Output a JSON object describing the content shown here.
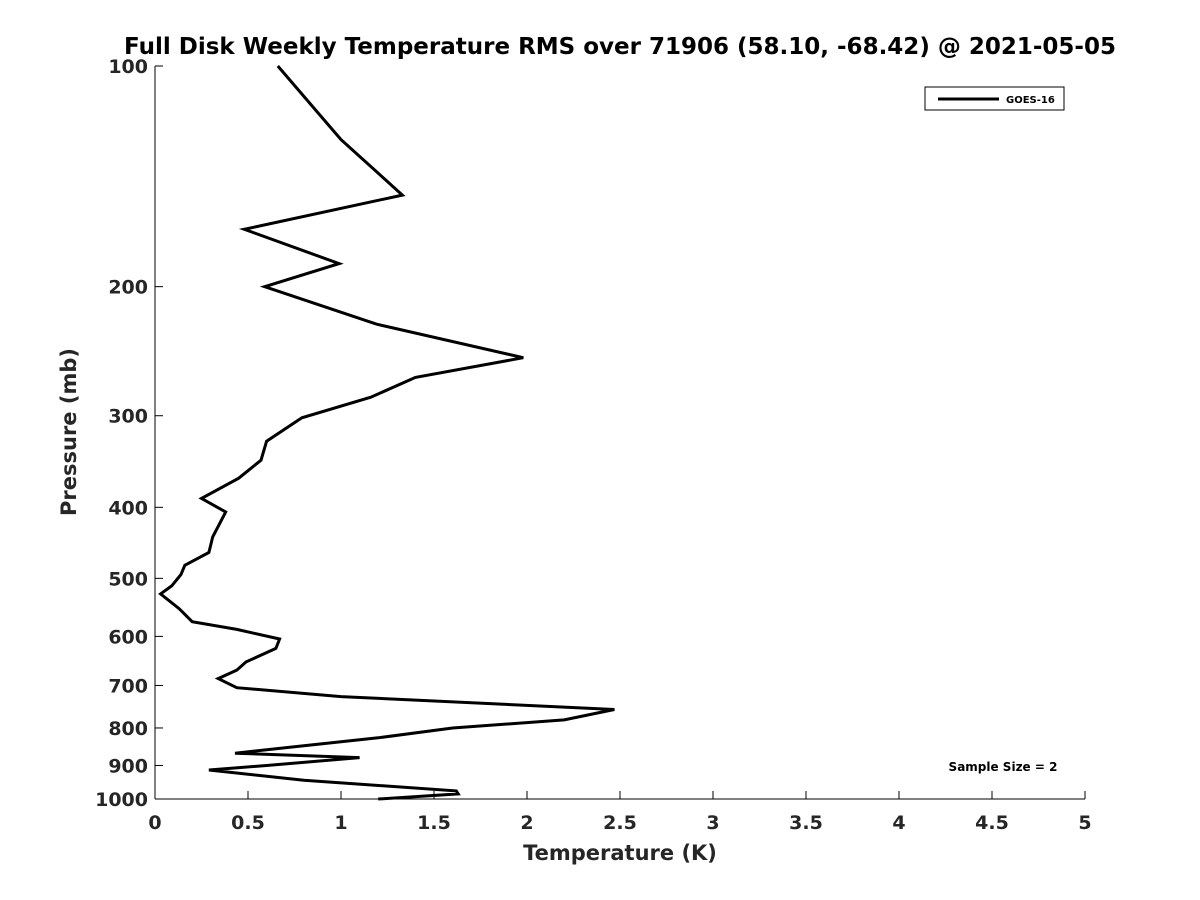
{
  "chart_data": {
    "type": "line",
    "title": "Full Disk Weekly Temperature RMS over 71906 (58.10, -68.42) @ 2021-05-05",
    "xlabel": "Temperature (K)",
    "ylabel": "Pressure (mb)",
    "xlim": [
      0,
      5
    ],
    "ylim": [
      100,
      1000
    ],
    "y_scale": "log",
    "y_reversed": true,
    "grid": false,
    "x_ticks": [
      "0",
      "0.5",
      "1",
      "1.5",
      "2",
      "2.5",
      "3",
      "3.5",
      "4",
      "4.5",
      "5"
    ],
    "y_ticks": [
      "100",
      "200",
      "300",
      "400",
      "500",
      "600",
      "700",
      "800",
      "900",
      "1000"
    ],
    "legend": {
      "placement": "top-right",
      "entries": [
        "GOES-16"
      ]
    },
    "annotation": "Sample Size = 2",
    "series": [
      {
        "name": "GOES-16",
        "color": "#000000",
        "x": [
          0.66,
          1.0,
          1.33,
          0.48,
          0.99,
          0.59,
          1.19,
          1.98,
          1.4,
          1.16,
          0.79,
          0.6,
          0.57,
          0.45,
          0.25,
          0.38,
          0.31,
          0.29,
          0.16,
          0.14,
          0.09,
          0.03,
          0.13,
          0.2,
          0.44,
          0.67,
          0.65,
          0.49,
          0.44,
          0.34,
          0.44,
          1.0,
          2.47,
          2.2,
          1.6,
          1.2,
          0.8,
          0.43,
          1.1,
          0.6,
          0.29,
          0.8,
          1.62,
          1.63,
          1.2
        ],
        "y": [
          100,
          126,
          150,
          167,
          186,
          200,
          225,
          250,
          266,
          283,
          302,
          325,
          345,
          365,
          389,
          406,
          439,
          461,
          480,
          494,
          512,
          525,
          550,
          573,
          587,
          605,
          623,
          650,
          667,
          685,
          705,
          725,
          755,
          780,
          800,
          825,
          846,
          866,
          878,
          900,
          913,
          943,
          975,
          984,
          1000
        ]
      }
    ]
  }
}
